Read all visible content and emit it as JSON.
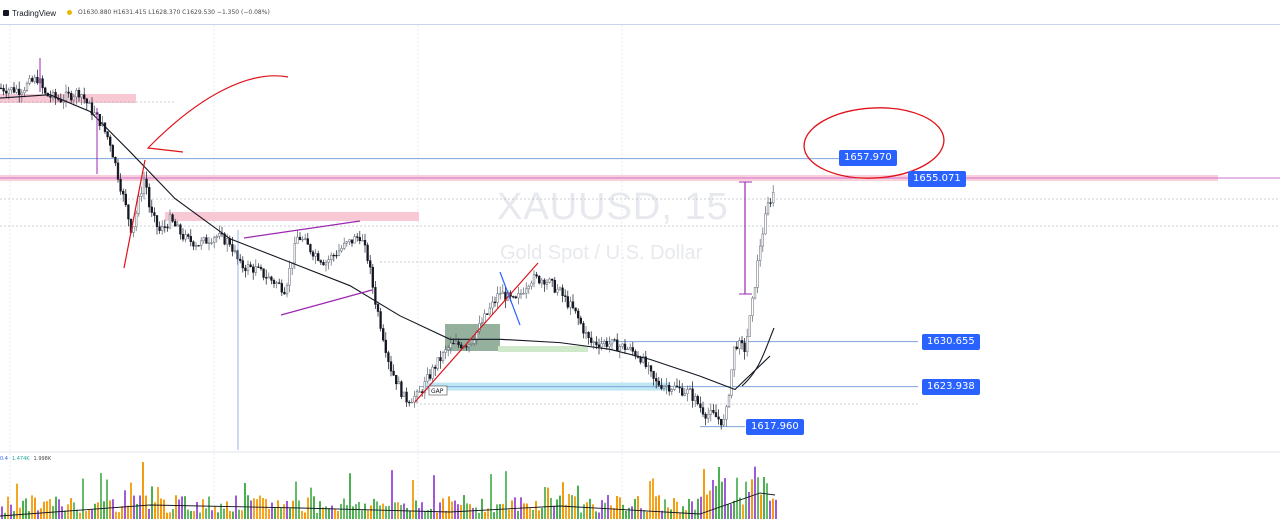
{
  "app": {
    "brand": "TradingView",
    "ohlc_readout": "O1630.880  H1631.415  L1628.370  C1629.530  −1.350 (−0.08%)"
  },
  "watermark": {
    "symbol": "XAUUSD, 15",
    "description": "Gold Spot / U.S. Dollar"
  },
  "price_tags": [
    {
      "label": "1657.970",
      "value": 1657.97
    },
    {
      "label": "1655.071",
      "value": 1655.071
    },
    {
      "label": "1630.655",
      "value": 1630.655
    },
    {
      "label": "1623.938",
      "value": 1623.938
    },
    {
      "label": "1617.960",
      "value": 1617.96
    }
  ],
  "annotations": {
    "gap_label": "GAP"
  },
  "volume_legend": [
    "0.4",
    "1.474K",
    "1.998K"
  ],
  "colors": {
    "up": "#26a69a",
    "down": "#131722",
    "tag": "#2962ff",
    "zone_pink": "#f8c8d4",
    "zone_blue": "#bfe6f3",
    "zone_green": "#cfe8c9",
    "zone_dark_green": "#7b9e86",
    "pen_red": "#e0121a",
    "pen_purple": "#9c27b0",
    "vol_orange": "#f5a623",
    "vol_purple": "#a05ad8",
    "vol_green": "#66bb6a"
  },
  "chart_data": {
    "type": "candlestick",
    "symbol": "XAUUSD",
    "interval": "15",
    "ylim": [
      1612,
      1672
    ],
    "close_path": [
      [
        0,
        1668.5
      ],
      [
        20,
        1668.2
      ],
      [
        38,
        1670.0
      ],
      [
        45,
        1667.5
      ],
      [
        60,
        1666.8
      ],
      [
        80,
        1668.0
      ],
      [
        90,
        1665.5
      ],
      [
        100,
        1663.5
      ],
      [
        110,
        1660.5
      ],
      [
        122,
        1653.0
      ],
      [
        132,
        1647.0
      ],
      [
        140,
        1652.5
      ],
      [
        145,
        1655.5
      ],
      [
        150,
        1650.0
      ],
      [
        160,
        1647.0
      ],
      [
        170,
        1648.8
      ],
      [
        185,
        1646.0
      ],
      [
        200,
        1645.2
      ],
      [
        215,
        1646.5
      ],
      [
        230,
        1645.5
      ],
      [
        240,
        1642.0
      ],
      [
        255,
        1641.5
      ],
      [
        270,
        1640.0
      ],
      [
        285,
        1638.5
      ],
      [
        298,
        1646.5
      ],
      [
        310,
        1644.5
      ],
      [
        325,
        1642.5
      ],
      [
        345,
        1645.0
      ],
      [
        360,
        1646.5
      ],
      [
        368,
        1643.0
      ],
      [
        375,
        1637.0
      ],
      [
        390,
        1627.0
      ],
      [
        405,
        1622.0
      ],
      [
        418,
        1622.5
      ],
      [
        435,
        1627.0
      ],
      [
        450,
        1630.0
      ],
      [
        470,
        1630.5
      ],
      [
        488,
        1635.0
      ],
      [
        500,
        1638.0
      ],
      [
        515,
        1636.5
      ],
      [
        530,
        1640.0
      ],
      [
        545,
        1640.0
      ],
      [
        560,
        1638.0
      ],
      [
        575,
        1635.0
      ],
      [
        590,
        1630.5
      ],
      [
        605,
        1630.5
      ],
      [
        625,
        1629.8
      ],
      [
        640,
        1628.5
      ],
      [
        655,
        1624.5
      ],
      [
        670,
        1624.0
      ],
      [
        690,
        1623.0
      ],
      [
        705,
        1620.0
      ],
      [
        715,
        1619.5
      ],
      [
        725,
        1618.5
      ],
      [
        735,
        1630.5
      ],
      [
        745,
        1629.5
      ],
      [
        752,
        1636.0
      ],
      [
        760,
        1645.0
      ],
      [
        768,
        1651.0
      ],
      [
        775,
        1653.5
      ]
    ],
    "ma_path": [
      [
        0,
        1667.0
      ],
      [
        50,
        1667.5
      ],
      [
        90,
        1665.0
      ],
      [
        130,
        1659.0
      ],
      [
        175,
        1652.0
      ],
      [
        230,
        1646.0
      ],
      [
        290,
        1642.5
      ],
      [
        350,
        1639.0
      ],
      [
        400,
        1634.5
      ],
      [
        450,
        1631.0
      ],
      [
        500,
        1631.0
      ],
      [
        560,
        1630.5
      ],
      [
        610,
        1629.5
      ],
      [
        650,
        1628.0
      ],
      [
        700,
        1625.5
      ],
      [
        735,
        1623.5
      ],
      [
        770,
        1628.5
      ]
    ],
    "levels": [
      1657.97,
      1655.071,
      1630.655,
      1623.938,
      1617.96
    ],
    "volume": {
      "type": "bar"
    }
  }
}
